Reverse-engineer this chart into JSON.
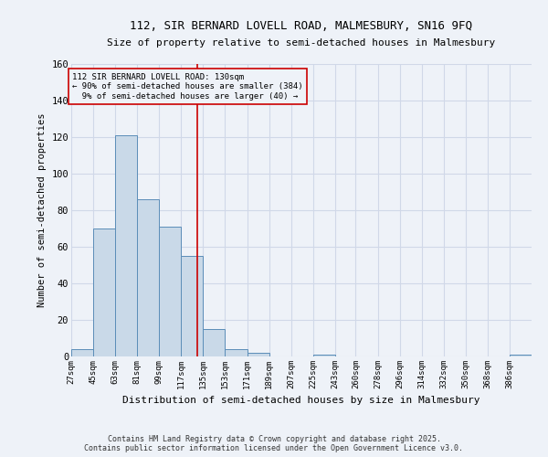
{
  "title_line1": "112, SIR BERNARD LOVELL ROAD, MALMESBURY, SN16 9FQ",
  "title_line2": "Size of property relative to semi-detached houses in Malmesbury",
  "xlabel": "Distribution of semi-detached houses by size in Malmesbury",
  "ylabel": "Number of semi-detached properties",
  "bin_labels": [
    "27sqm",
    "45sqm",
    "63sqm",
    "81sqm",
    "99sqm",
    "117sqm",
    "135sqm",
    "153sqm",
    "171sqm",
    "189sqm",
    "207sqm",
    "225sqm",
    "243sqm",
    "260sqm",
    "278sqm",
    "296sqm",
    "314sqm",
    "332sqm",
    "350sqm",
    "368sqm",
    "386sqm"
  ],
  "bar_values": [
    4,
    70,
    121,
    86,
    71,
    55,
    15,
    4,
    2,
    0,
    0,
    1,
    0,
    0,
    0,
    0,
    0,
    0,
    0,
    0,
    1
  ],
  "bar_color": "#c9d9e8",
  "bar_edge_color": "#5b8db8",
  "grid_color": "#d0d8e8",
  "background_color": "#eef2f8",
  "vline_x": 130,
  "vline_color": "#cc0000",
  "annotation_text": "112 SIR BERNARD LOVELL ROAD: 130sqm\n← 90% of semi-detached houses are smaller (384)\n  9% of semi-detached houses are larger (40) →",
  "annotation_box_edge": "#cc0000",
  "ylim": [
    0,
    160
  ],
  "yticks": [
    0,
    20,
    40,
    60,
    80,
    100,
    120,
    140,
    160
  ],
  "footer_line1": "Contains HM Land Registry data © Crown copyright and database right 2025.",
  "footer_line2": "Contains public sector information licensed under the Open Government Licence v3.0.",
  "bin_edges": [
    27,
    45,
    63,
    81,
    99,
    117,
    135,
    153,
    171,
    189,
    207,
    225,
    243,
    260,
    278,
    296,
    314,
    332,
    350,
    368,
    386,
    404
  ]
}
